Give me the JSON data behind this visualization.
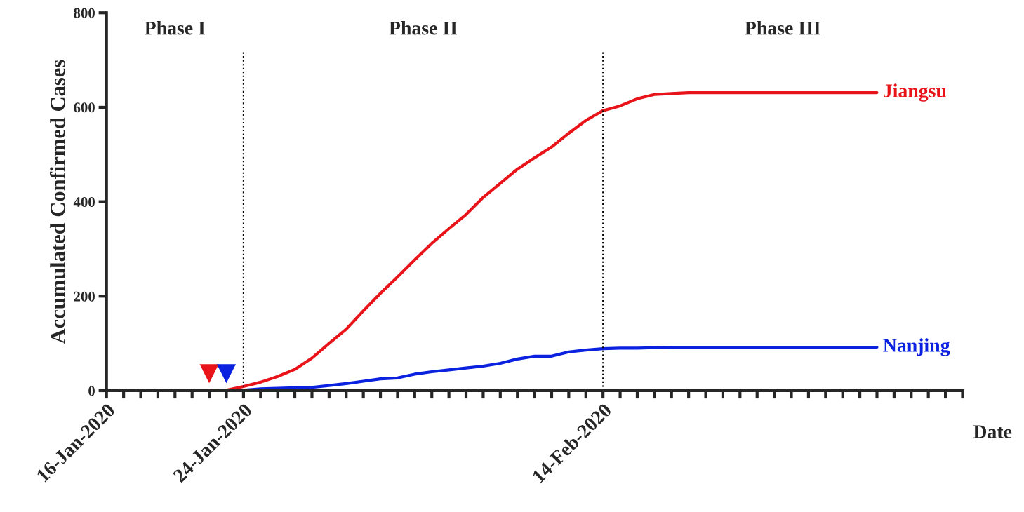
{
  "chart_data": {
    "type": "line",
    "xlabel": "Date",
    "ylabel": "Accumulated Confirmed Cases",
    "xlim": [
      "2020-01-16",
      "2020-03-06"
    ],
    "ylim": [
      0,
      800
    ],
    "yticks": [
      0,
      200,
      400,
      600,
      800
    ],
    "xticks": [
      {
        "value": "2020-01-16",
        "label": "16-Jan-2020"
      },
      {
        "value": "2020-01-17",
        "label": null
      },
      {
        "value": "2020-01-18",
        "label": null
      },
      {
        "value": "2020-01-19",
        "label": null
      },
      {
        "value": "2020-01-20",
        "label": null
      },
      {
        "value": "2020-01-21",
        "label": null
      },
      {
        "value": "2020-01-22",
        "label": null
      },
      {
        "value": "2020-01-23",
        "label": null
      },
      {
        "value": "2020-01-24",
        "label": "24-Jan-2020"
      },
      {
        "value": "2020-01-25",
        "label": null
      },
      {
        "value": "2020-01-26",
        "label": null
      },
      {
        "value": "2020-01-27",
        "label": null
      },
      {
        "value": "2020-01-28",
        "label": null
      },
      {
        "value": "2020-01-29",
        "label": null
      },
      {
        "value": "2020-01-30",
        "label": null
      },
      {
        "value": "2020-01-31",
        "label": null
      },
      {
        "value": "2020-02-01",
        "label": null
      },
      {
        "value": "2020-02-02",
        "label": null
      },
      {
        "value": "2020-02-03",
        "label": null
      },
      {
        "value": "2020-02-04",
        "label": null
      },
      {
        "value": "2020-02-05",
        "label": null
      },
      {
        "value": "2020-02-06",
        "label": null
      },
      {
        "value": "2020-02-07",
        "label": null
      },
      {
        "value": "2020-02-08",
        "label": null
      },
      {
        "value": "2020-02-09",
        "label": null
      },
      {
        "value": "2020-02-10",
        "label": null
      },
      {
        "value": "2020-02-11",
        "label": null
      },
      {
        "value": "2020-02-12",
        "label": null
      },
      {
        "value": "2020-02-13",
        "label": null
      },
      {
        "value": "2020-02-14",
        "label": "14-Feb-2020"
      },
      {
        "value": "2020-02-15",
        "label": null
      },
      {
        "value": "2020-02-16",
        "label": null
      },
      {
        "value": "2020-02-17",
        "label": null
      },
      {
        "value": "2020-02-18",
        "label": null
      },
      {
        "value": "2020-02-19",
        "label": null
      },
      {
        "value": "2020-02-20",
        "label": null
      },
      {
        "value": "2020-02-21",
        "label": null
      },
      {
        "value": "2020-02-22",
        "label": null
      },
      {
        "value": "2020-02-23",
        "label": null
      },
      {
        "value": "2020-02-24",
        "label": null
      },
      {
        "value": "2020-02-25",
        "label": null
      },
      {
        "value": "2020-02-26",
        "label": null
      },
      {
        "value": "2020-02-27",
        "label": null
      },
      {
        "value": "2020-02-28",
        "label": null
      },
      {
        "value": "2020-02-29",
        "label": null
      },
      {
        "value": "2020-03-01",
        "label": null
      },
      {
        "value": "2020-03-02",
        "label": null
      },
      {
        "value": "2020-03-03",
        "label": null
      },
      {
        "value": "2020-03-04",
        "label": null
      },
      {
        "value": "2020-03-05",
        "label": null
      },
      {
        "value": "2020-03-06",
        "label": null
      }
    ],
    "series": [
      {
        "name": "Jiangsu",
        "color": "#e8141a",
        "x": [
          "2020-01-22",
          "2020-01-23",
          "2020-01-24",
          "2020-01-25",
          "2020-01-26",
          "2020-01-27",
          "2020-01-28",
          "2020-01-29",
          "2020-01-30",
          "2020-01-31",
          "2020-02-01",
          "2020-02-02",
          "2020-02-03",
          "2020-02-04",
          "2020-02-05",
          "2020-02-06",
          "2020-02-07",
          "2020-02-08",
          "2020-02-09",
          "2020-02-10",
          "2020-02-11",
          "2020-02-12",
          "2020-02-13",
          "2020-02-14",
          "2020-02-15",
          "2020-02-16",
          "2020-02-17",
          "2020-02-18",
          "2020-02-19",
          "2020-02-20",
          "2020-02-21",
          "2020-02-22",
          "2020-02-23",
          "2020-02-24",
          "2020-02-25",
          "2020-02-26",
          "2020-02-27",
          "2020-02-28",
          "2020-02-29",
          "2020-03-01"
        ],
        "values": [
          0,
          1,
          9,
          18,
          30,
          45,
          69,
          100,
          130,
          169,
          206,
          241,
          277,
          312,
          343,
          373,
          409,
          439,
          469,
          493,
          516,
          545,
          572,
          593,
          603,
          618,
          627,
          629,
          631,
          631,
          631,
          631,
          631,
          631,
          631,
          631,
          631,
          631,
          631,
          631
        ]
      },
      {
        "name": "Nanjing",
        "color": "#0a22e0",
        "x": [
          "2020-01-23",
          "2020-01-24",
          "2020-01-25",
          "2020-01-26",
          "2020-01-27",
          "2020-01-28",
          "2020-01-29",
          "2020-01-30",
          "2020-01-31",
          "2020-02-01",
          "2020-02-02",
          "2020-02-03",
          "2020-02-04",
          "2020-02-05",
          "2020-02-06",
          "2020-02-07",
          "2020-02-08",
          "2020-02-09",
          "2020-02-10",
          "2020-02-11",
          "2020-02-12",
          "2020-02-13",
          "2020-02-14",
          "2020-02-15",
          "2020-02-16",
          "2020-02-17",
          "2020-02-18",
          "2020-02-19",
          "2020-02-20",
          "2020-02-21",
          "2020-02-22",
          "2020-02-23",
          "2020-02-24",
          "2020-02-25",
          "2020-02-26",
          "2020-02-27",
          "2020-02-28",
          "2020-02-29",
          "2020-03-01"
        ],
        "values": [
          0,
          1,
          4,
          5,
          6,
          7,
          11,
          15,
          20,
          25,
          27,
          35,
          40,
          44,
          48,
          52,
          58,
          67,
          73,
          73,
          82,
          86,
          89,
          90,
          90,
          91,
          92,
          92,
          92,
          92,
          92,
          92,
          92,
          92,
          92,
          92,
          92,
          92,
          92
        ]
      },
      {
        "type": "scatter",
        "marker": "triangle",
        "color": "#e8141a",
        "x": [
          "2020-01-22"
        ],
        "values": [
          36
        ]
      },
      {
        "type": "scatter",
        "marker": "triangle",
        "color": "#0a22e0",
        "x": [
          "2020-01-23"
        ],
        "values": [
          36
        ]
      }
    ],
    "ref_lines": [
      {
        "axis": "x",
        "value": "2020-01-24",
        "line_style": "dotted",
        "color": "#000000"
      },
      {
        "axis": "x",
        "value": "2020-02-14",
        "line_style": "dotted",
        "color": "#000000"
      }
    ],
    "annotations": [
      "Phase I",
      "Phase II",
      "Phase III"
    ],
    "grid": false,
    "legend": false
  }
}
